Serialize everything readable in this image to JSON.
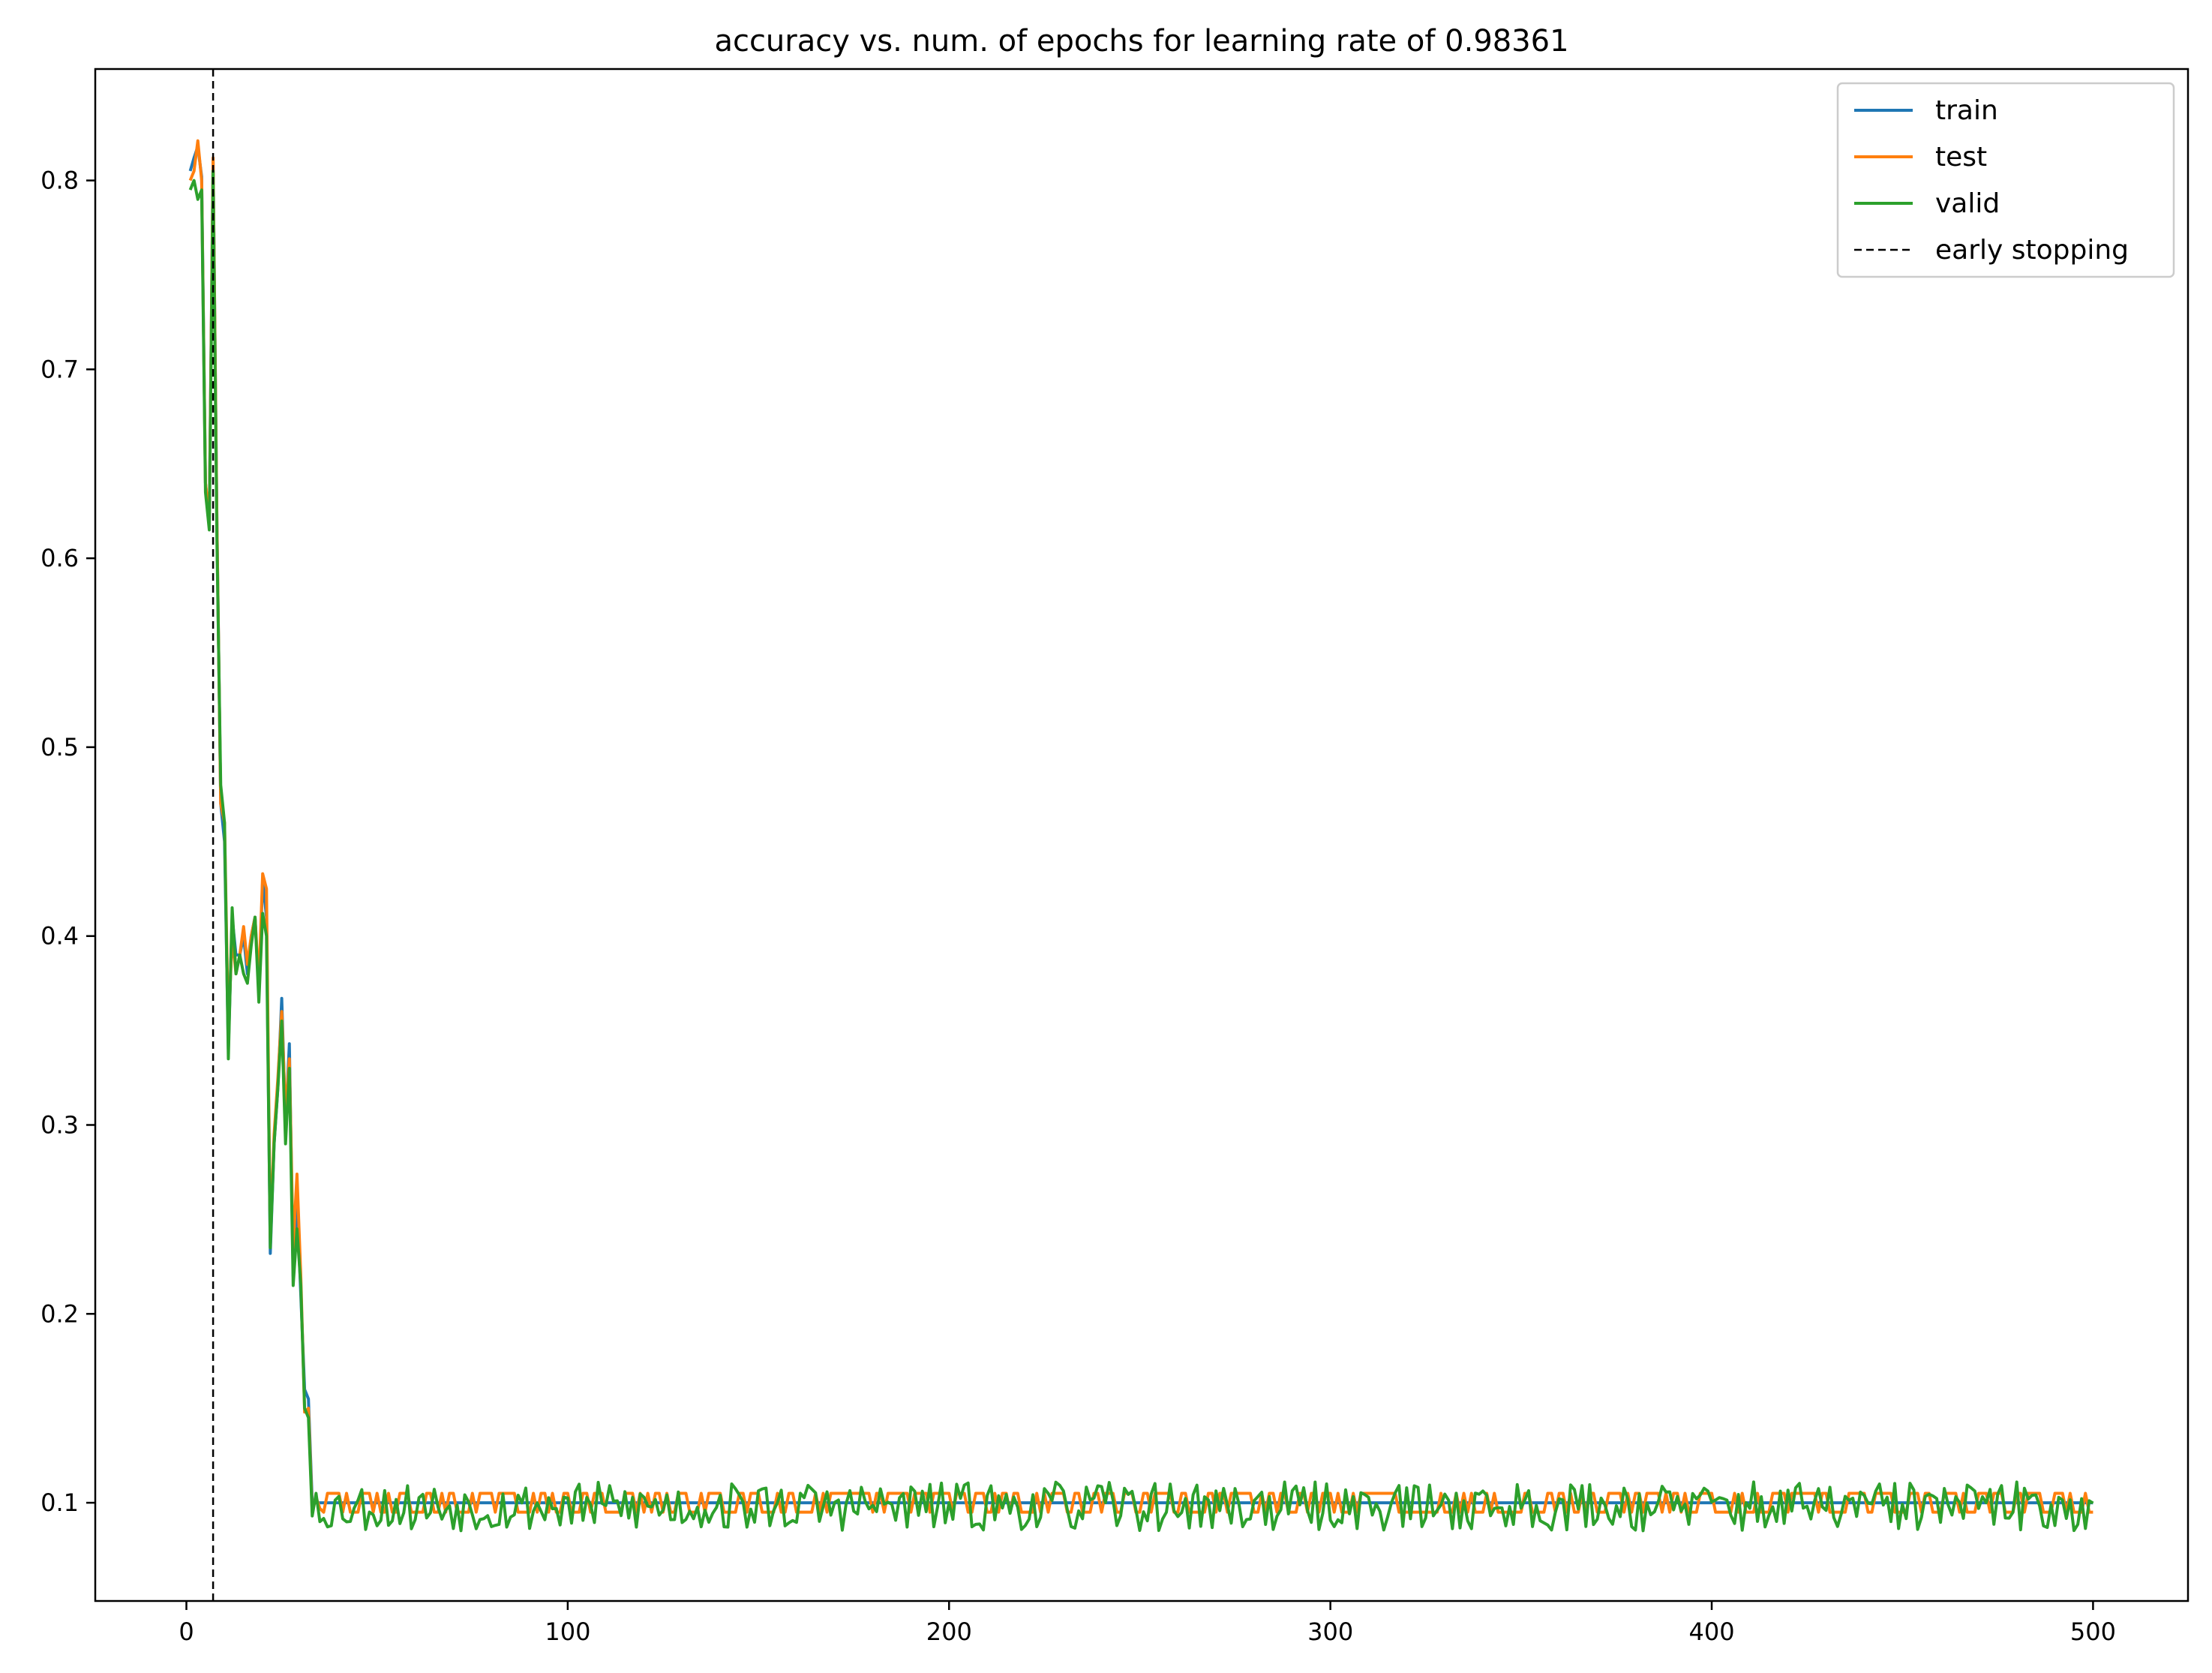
{
  "chart_data": {
    "type": "line",
    "title": "accuracy vs. num. of epochs for learning rate of 0.98361",
    "xlabel": "",
    "ylabel": "",
    "xlim": [
      -23.9,
      524.9
    ],
    "ylim": [
      0.048,
      0.859
    ],
    "xticks": [
      0,
      100,
      200,
      300,
      400,
      500
    ],
    "xtick_labels": [
      "0",
      "100",
      "200",
      "300",
      "400",
      "500"
    ],
    "yticks": [
      0.1,
      0.2,
      0.3,
      0.4,
      0.5,
      0.6,
      0.7,
      0.8
    ],
    "ytick_labels": [
      "0.1",
      "0.2",
      "0.3",
      "0.4",
      "0.5",
      "0.6",
      "0.7",
      "0.8"
    ],
    "grid": false,
    "legend_position": "top-right",
    "early_stopping_epoch": 7,
    "steady_state": {
      "start_epoch": 36,
      "end_epoch": 500
    },
    "series": [
      {
        "name": "train",
        "color": "#1f77b4",
        "style": "solid",
        "head_points": [
          [
            1,
            0.805
          ],
          [
            2,
            0.812
          ],
          [
            3,
            0.818
          ],
          [
            4,
            0.802
          ],
          [
            5,
            0.64
          ],
          [
            6,
            0.62
          ],
          [
            7,
            0.81
          ],
          [
            8,
            0.62
          ],
          [
            9,
            0.47
          ],
          [
            10,
            0.45
          ],
          [
            11,
            0.34
          ],
          [
            12,
            0.41
          ],
          [
            13,
            0.39
          ],
          [
            14,
            0.39
          ],
          [
            15,
            0.4
          ],
          [
            16,
            0.38
          ],
          [
            17,
            0.4
          ],
          [
            18,
            0.41
          ],
          [
            19,
            0.37
          ],
          [
            20,
            0.43
          ],
          [
            21,
            0.41
          ],
          [
            22,
            0.232
          ],
          [
            23,
            0.29
          ],
          [
            24,
            0.32
          ],
          [
            25,
            0.367
          ],
          [
            26,
            0.3
          ],
          [
            27,
            0.343
          ],
          [
            28,
            0.22
          ],
          [
            29,
            0.26
          ],
          [
            30,
            0.21
          ],
          [
            31,
            0.16
          ],
          [
            32,
            0.155
          ],
          [
            33,
            0.1
          ],
          [
            34,
            0.1
          ],
          [
            35,
            0.1
          ]
        ],
        "steady_level": 0.1,
        "steady_amplitude": 0.0
      },
      {
        "name": "test",
        "color": "#ff7f0e",
        "style": "solid",
        "head_points": [
          [
            1,
            0.8
          ],
          [
            2,
            0.805
          ],
          [
            3,
            0.821
          ],
          [
            4,
            0.8
          ],
          [
            5,
            0.64
          ],
          [
            6,
            0.62
          ],
          [
            7,
            0.812
          ],
          [
            8,
            0.62
          ],
          [
            9,
            0.47
          ],
          [
            10,
            0.46
          ],
          [
            11,
            0.35
          ],
          [
            12,
            0.4
          ],
          [
            13,
            0.38
          ],
          [
            14,
            0.39
          ],
          [
            15,
            0.405
          ],
          [
            16,
            0.385
          ],
          [
            17,
            0.4
          ],
          [
            18,
            0.41
          ],
          [
            19,
            0.375
          ],
          [
            20,
            0.433
          ],
          [
            21,
            0.425
          ],
          [
            22,
            0.24
          ],
          [
            23,
            0.295
          ],
          [
            24,
            0.325
          ],
          [
            25,
            0.36
          ],
          [
            26,
            0.305
          ],
          [
            27,
            0.335
          ],
          [
            28,
            0.235
          ],
          [
            29,
            0.274
          ],
          [
            30,
            0.22
          ],
          [
            31,
            0.148
          ],
          [
            32,
            0.15
          ],
          [
            33,
            0.095
          ],
          [
            34,
            0.103
          ],
          [
            35,
            0.097
          ]
        ],
        "steady_level": 0.1,
        "steady_amplitude": 0.005
      },
      {
        "name": "valid",
        "color": "#2ca02c",
        "style": "solid",
        "head_points": [
          [
            1,
            0.795
          ],
          [
            2,
            0.8
          ],
          [
            3,
            0.79
          ],
          [
            4,
            0.795
          ],
          [
            5,
            0.635
          ],
          [
            6,
            0.615
          ],
          [
            7,
            0.805
          ],
          [
            8,
            0.61
          ],
          [
            9,
            0.48
          ],
          [
            10,
            0.46
          ],
          [
            11,
            0.335
          ],
          [
            12,
            0.415
          ],
          [
            13,
            0.38
          ],
          [
            14,
            0.39
          ],
          [
            15,
            0.38
          ],
          [
            16,
            0.375
          ],
          [
            17,
            0.395
          ],
          [
            18,
            0.41
          ],
          [
            19,
            0.365
          ],
          [
            20,
            0.412
          ],
          [
            21,
            0.4
          ],
          [
            22,
            0.235
          ],
          [
            23,
            0.29
          ],
          [
            24,
            0.32
          ],
          [
            25,
            0.355
          ],
          [
            26,
            0.29
          ],
          [
            27,
            0.33
          ],
          [
            28,
            0.215
          ],
          [
            29,
            0.245
          ],
          [
            30,
            0.215
          ],
          [
            31,
            0.15
          ],
          [
            32,
            0.145
          ],
          [
            33,
            0.093
          ],
          [
            34,
            0.105
          ],
          [
            35,
            0.09
          ]
        ],
        "steady_level": 0.098,
        "steady_amplitude": 0.013
      },
      {
        "name": "early stopping",
        "color": "#000000",
        "style": "dashed",
        "vline_x": 7
      }
    ]
  }
}
